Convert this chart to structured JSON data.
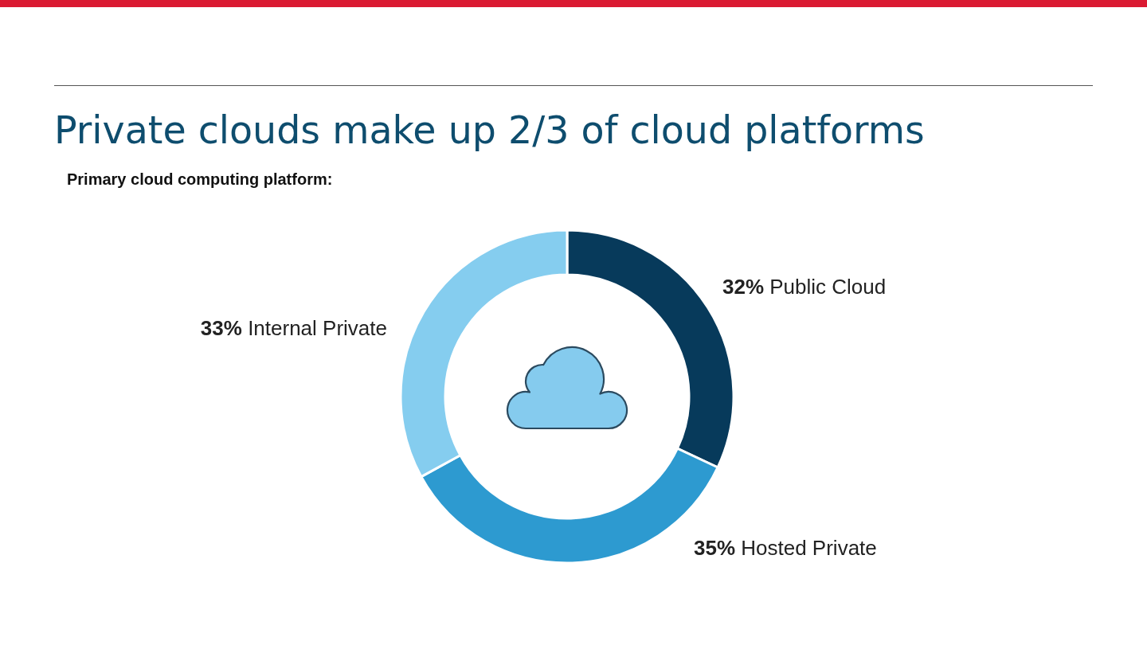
{
  "chart_data": {
    "type": "donut",
    "title": "Private clouds make up 2/3 of cloud platforms",
    "subtitle": "Primary cloud computing platform:",
    "categories": [
      "Public Cloud",
      "Hosted Private",
      "Internal Private"
    ],
    "values": [
      32,
      35,
      33
    ],
    "colors": [
      "#073a5b",
      "#2d9ad0",
      "#85cdef"
    ],
    "value_labels": [
      "32%",
      "35%",
      "33%"
    ]
  }
}
